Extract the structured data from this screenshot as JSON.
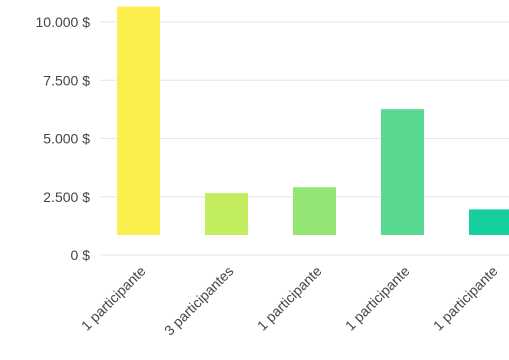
{
  "chart_data": {
    "type": "bar",
    "categories": [
      "1 participante",
      "3 participantes",
      "1 participante",
      "1 participante",
      "1 participante"
    ],
    "values": [
      9800,
      1800,
      2050,
      5400,
      1100
    ],
    "colors": [
      "#fcef4d",
      "#c2ed5f",
      "#93e673",
      "#58d891",
      "#15cf9f"
    ],
    "y_ticks": [
      0,
      2500,
      5000,
      7500,
      10000
    ],
    "y_tick_labels": [
      "0 $",
      "2.500 $",
      "5.000 $",
      "7.500 $",
      "10.000 $"
    ],
    "ylim": [
      0,
      10000
    ],
    "grid": true,
    "title": "",
    "xlabel": "",
    "ylabel": ""
  }
}
